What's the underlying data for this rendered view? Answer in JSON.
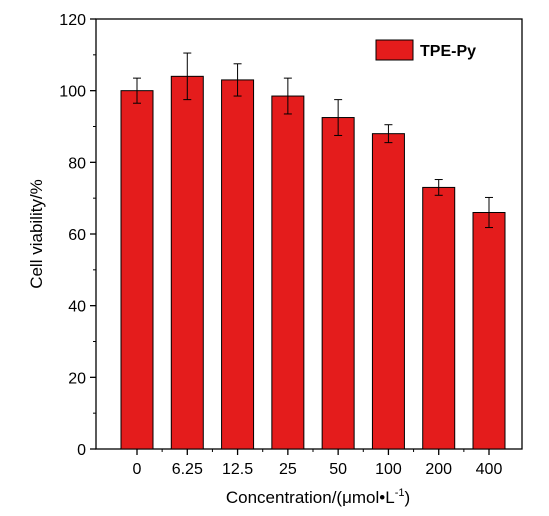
{
  "chart_data": {
    "type": "bar",
    "categories": [
      "0",
      "6.25",
      "12.5",
      "25",
      "50",
      "100",
      "200",
      "400"
    ],
    "series": [
      {
        "name": "TPE-Py",
        "values": [
          100,
          104,
          103,
          98.5,
          92.5,
          88,
          73,
          66
        ],
        "errors": [
          3.5,
          6.5,
          4.5,
          5,
          5,
          2.5,
          2.2,
          4.2
        ],
        "color": "#e41c1c"
      }
    ],
    "title": "",
    "xlabel_main": "Concentration/(μmol•L",
    "xlabel_sup": "-1",
    "xlabel_end": ")",
    "ylabel": "Cell viability/%",
    "ylim": [
      0,
      120
    ],
    "yticks": [
      "0",
      "20",
      "40",
      "60",
      "80",
      "100",
      "120"
    ],
    "legend_position": "top-right",
    "grid": false
  }
}
